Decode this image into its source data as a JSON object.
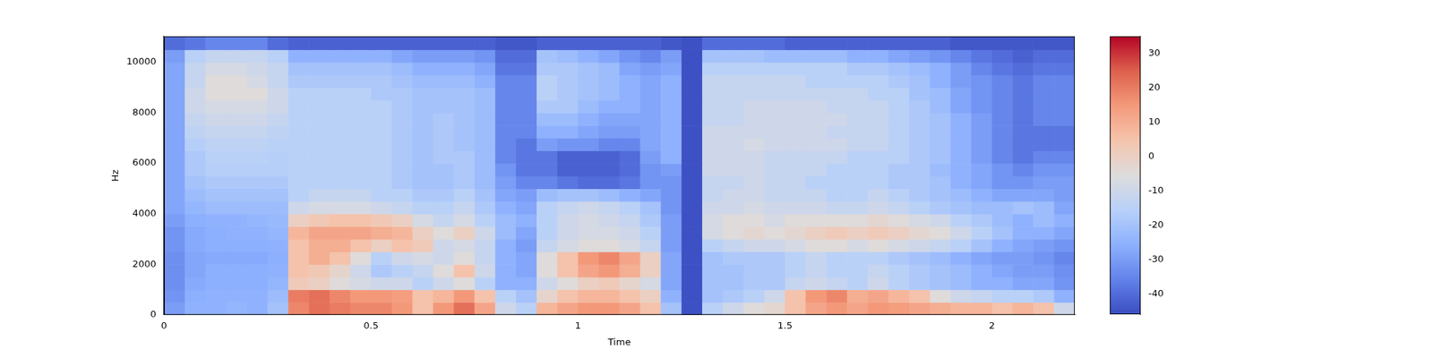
{
  "chart_data": {
    "type": "heatmap",
    "x_label": "Time",
    "y_label": "Hz",
    "xlim": [
      0,
      2.2
    ],
    "xticks": [
      0,
      0.5,
      1,
      1.5,
      2
    ],
    "ylim": [
      0,
      11025
    ],
    "yticks": [
      0,
      2000,
      4000,
      6000,
      8000,
      10000
    ],
    "grid": false,
    "colorbar_lim": [
      -46,
      35
    ],
    "colorbar_ticks": [
      -40,
      -30,
      -20,
      -10,
      0,
      10,
      20,
      30
    ],
    "x_bins": [
      0,
      0.05,
      0.1,
      0.15,
      0.2,
      0.25,
      0.3,
      0.35,
      0.4,
      0.45,
      0.5,
      0.55,
      0.6,
      0.65,
      0.7,
      0.75,
      0.8,
      0.85,
      0.9,
      0.95,
      1,
      1.05,
      1.1,
      1.15,
      1.2,
      1.25,
      1.3,
      1.35,
      1.4,
      1.45,
      1.5,
      1.55,
      1.6,
      1.65,
      1.7,
      1.75,
      1.8,
      1.85,
      1.9,
      1.95,
      2,
      2.05,
      2.1,
      2.15,
      2.2
    ],
    "y_bins": [
      0,
      500,
      1000,
      1500,
      2000,
      2500,
      3000,
      3500,
      4000,
      4500,
      5000,
      5500,
      6000,
      6500,
      7000,
      7500,
      8000,
      8500,
      9000,
      9500,
      10000,
      10500,
      11025
    ],
    "cells": [
      [
        -30,
        -25,
        -25,
        -24,
        -25,
        -20,
        18,
        22,
        20,
        18,
        18,
        15,
        5,
        15,
        22,
        12,
        -10,
        -15,
        8,
        12,
        15,
        15,
        12,
        5,
        -20,
        -45,
        -15,
        -10,
        -5,
        -3,
        5,
        12,
        15,
        12,
        15,
        14,
        12,
        10,
        8,
        8,
        5,
        8,
        5,
        -10
      ],
      [
        -32,
        -26,
        -25,
        -25,
        -25,
        -22,
        20,
        22,
        18,
        15,
        15,
        14,
        5,
        8,
        15,
        5,
        -15,
        -20,
        -2,
        5,
        8,
        8,
        5,
        0,
        -25,
        -45,
        -20,
        -18,
        -15,
        -10,
        5,
        15,
        18,
        10,
        12,
        8,
        5,
        -5,
        -10,
        -12,
        -15,
        -15,
        -18,
        -25
      ],
      [
        -33,
        -27,
        -26,
        -26,
        -26,
        -24,
        2,
        0,
        -5,
        -8,
        -10,
        -10,
        -15,
        -10,
        -5,
        -15,
        -25,
        -25,
        -10,
        -5,
        0,
        2,
        -2,
        -8,
        -28,
        -45,
        -20,
        -20,
        -18,
        -18,
        -12,
        -10,
        -12,
        -15,
        -10,
        -15,
        -18,
        -20,
        -22,
        -25,
        -25,
        -28,
        -28,
        -32
      ],
      [
        -33,
        -28,
        -26,
        -26,
        -26,
        -25,
        5,
        3,
        -2,
        -10,
        -18,
        -15,
        -12,
        -5,
        5,
        -10,
        -25,
        -28,
        -5,
        5,
        12,
        15,
        10,
        0,
        -28,
        -45,
        -20,
        -20,
        -18,
        -18,
        -15,
        -12,
        -15,
        -15,
        -12,
        -15,
        -18,
        -20,
        -22,
        -25,
        -28,
        -30,
        -30,
        -33
      ],
      [
        -33,
        -28,
        -27,
        -27,
        -27,
        -26,
        5,
        10,
        5,
        -5,
        -15,
        -10,
        -8,
        -10,
        -5,
        -12,
        -25,
        -28,
        -5,
        5,
        15,
        18,
        12,
        0,
        -28,
        -45,
        -20,
        -18,
        -18,
        -18,
        -15,
        -12,
        -15,
        -15,
        -15,
        -18,
        -20,
        -22,
        -25,
        -28,
        -30,
        -30,
        -32,
        -35
      ],
      [
        -32,
        -27,
        -26,
        -26,
        -26,
        -25,
        5,
        10,
        10,
        5,
        0,
        5,
        2,
        -10,
        -8,
        -12,
        -25,
        -30,
        -12,
        -8,
        -5,
        -5,
        -8,
        -12,
        -30,
        -45,
        -15,
        -12,
        -10,
        -10,
        -8,
        -5,
        -5,
        -8,
        -5,
        -8,
        -10,
        -12,
        -15,
        -20,
        -25,
        -28,
        -30,
        -32
      ],
      [
        -32,
        -27,
        -26,
        -25,
        -25,
        -24,
        8,
        12,
        12,
        12,
        10,
        8,
        0,
        -5,
        0,
        -10,
        -22,
        -28,
        -15,
        -10,
        -8,
        -8,
        -10,
        -15,
        -30,
        -45,
        -8,
        -5,
        -3,
        -5,
        -3,
        0,
        2,
        0,
        2,
        0,
        -3,
        -5,
        -10,
        -15,
        -20,
        -25,
        -25,
        -28
      ],
      [
        -30,
        -26,
        -25,
        -25,
        -24,
        -23,
        0,
        3,
        5,
        5,
        3,
        0,
        -8,
        -12,
        -8,
        -15,
        -22,
        -25,
        -15,
        -10,
        -8,
        -10,
        -12,
        -18,
        -30,
        -45,
        -8,
        -5,
        -5,
        -8,
        -5,
        -5,
        -5,
        -5,
        -3,
        -5,
        -8,
        -10,
        -15,
        -18,
        -22,
        -25,
        -22,
        -25
      ],
      [
        -28,
        -24,
        -22,
        -22,
        -22,
        -22,
        -10,
        -8,
        -8,
        -8,
        -10,
        -12,
        -15,
        -15,
        -12,
        -18,
        -25,
        -28,
        -15,
        -12,
        -10,
        -12,
        -15,
        -20,
        -32,
        -45,
        -10,
        -10,
        -8,
        -10,
        -10,
        -10,
        -12,
        -12,
        -10,
        -12,
        -15,
        -18,
        -20,
        -22,
        -22,
        -20,
        -22,
        -28
      ],
      [
        -28,
        -22,
        -20,
        -20,
        -20,
        -20,
        -15,
        -12,
        -12,
        -12,
        -15,
        -15,
        -18,
        -18,
        -15,
        -20,
        -28,
        -30,
        -22,
        -20,
        -20,
        -22,
        -25,
        -28,
        -32,
        -45,
        -12,
        -10,
        -10,
        -12,
        -12,
        -12,
        -15,
        -15,
        -12,
        -15,
        -18,
        -20,
        -22,
        -25,
        -28,
        -28,
        -28,
        -30
      ],
      [
        -28,
        -20,
        -18,
        -18,
        -18,
        -18,
        -15,
        -15,
        -15,
        -15,
        -15,
        -18,
        -20,
        -20,
        -18,
        -22,
        -30,
        -35,
        -35,
        -38,
        -40,
        -40,
        -38,
        -32,
        -32,
        -45,
        -12,
        -12,
        -10,
        -12,
        -12,
        -15,
        -15,
        -15,
        -15,
        -18,
        -18,
        -20,
        -25,
        -28,
        -32,
        -32,
        -30,
        -30
      ],
      [
        -28,
        -18,
        -16,
        -16,
        -16,
        -16,
        -15,
        -15,
        -15,
        -15,
        -15,
        -18,
        -20,
        -20,
        -18,
        -22,
        -32,
        -38,
        -38,
        -42,
        -42,
        -42,
        -40,
        -32,
        -30,
        -45,
        -10,
        -10,
        -10,
        -12,
        -12,
        -12,
        -15,
        -15,
        -15,
        -18,
        -18,
        -22,
        -25,
        -28,
        -32,
        -35,
        -32,
        -32
      ],
      [
        -28,
        -18,
        -15,
        -15,
        -15,
        -16,
        -15,
        -15,
        -15,
        -15,
        -15,
        -18,
        -20,
        -18,
        -18,
        -22,
        -35,
        -38,
        -38,
        -42,
        -42,
        -42,
        -40,
        -30,
        -25,
        -45,
        -10,
        -10,
        -10,
        -12,
        -12,
        -12,
        -12,
        -15,
        -15,
        -15,
        -18,
        -20,
        -25,
        -30,
        -35,
        -38,
        -35,
        -35
      ],
      [
        -28,
        -16,
        -14,
        -14,
        -14,
        -15,
        -15,
        -15,
        -15,
        -15,
        -15,
        -18,
        -20,
        -18,
        -20,
        -22,
        -35,
        -38,
        -30,
        -32,
        -32,
        -35,
        -35,
        -28,
        -25,
        -45,
        -10,
        -10,
        -8,
        -10,
        -10,
        -10,
        -10,
        -12,
        -12,
        -15,
        -18,
        -20,
        -25,
        -30,
        -35,
        -38,
        -38,
        -38
      ],
      [
        -28,
        -14,
        -12,
        -12,
        -12,
        -14,
        -15,
        -15,
        -15,
        -15,
        -15,
        -18,
        -20,
        -18,
        -20,
        -22,
        -35,
        -35,
        -25,
        -25,
        -28,
        -30,
        -30,
        -28,
        -25,
        -45,
        -10,
        -10,
        -10,
        -10,
        -10,
        -10,
        -12,
        -12,
        -12,
        -15,
        -18,
        -20,
        -25,
        -30,
        -35,
        -38,
        -38,
        -38
      ],
      [
        -28,
        -12,
        -10,
        -10,
        -10,
        -12,
        -15,
        -15,
        -15,
        -15,
        -15,
        -18,
        -20,
        -18,
        -20,
        -22,
        -35,
        -35,
        -22,
        -22,
        -25,
        -28,
        -28,
        -28,
        -25,
        -45,
        -12,
        -12,
        -10,
        -10,
        -10,
        -10,
        -10,
        -12,
        -12,
        -15,
        -18,
        -20,
        -25,
        -30,
        -35,
        -38,
        -35,
        -35
      ],
      [
        -28,
        -10,
        -8,
        -8,
        -8,
        -10,
        -15,
        -15,
        -15,
        -15,
        -15,
        -18,
        -20,
        -20,
        -20,
        -22,
        -35,
        -35,
        -18,
        -18,
        -22,
        -25,
        -25,
        -28,
        -25,
        -45,
        -12,
        -12,
        -10,
        -10,
        -10,
        -10,
        -12,
        -12,
        -12,
        -15,
        -18,
        -22,
        -28,
        -32,
        -35,
        -38,
        -35,
        -35
      ],
      [
        -28,
        -10,
        -5,
        -5,
        -5,
        -10,
        -15,
        -15,
        -15,
        -15,
        -18,
        -18,
        -20,
        -20,
        -20,
        -22,
        -35,
        -35,
        -15,
        -18,
        -20,
        -22,
        -25,
        -28,
        -25,
        -45,
        -12,
        -12,
        -12,
        -12,
        -12,
        -12,
        -12,
        -12,
        -15,
        -15,
        -20,
        -22,
        -28,
        -32,
        -35,
        -38,
        -35,
        -35
      ],
      [
        -28,
        -12,
        -5,
        -5,
        -8,
        -12,
        -18,
        -18,
        -18,
        -18,
        -18,
        -20,
        -22,
        -22,
        -22,
        -25,
        -35,
        -35,
        -15,
        -18,
        -20,
        -22,
        -25,
        -28,
        -25,
        -45,
        -12,
        -12,
        -12,
        -12,
        -12,
        -15,
        -15,
        -15,
        -15,
        -18,
        -20,
        -25,
        -30,
        -32,
        -35,
        -38,
        -35,
        -35
      ],
      [
        -28,
        -12,
        -8,
        -8,
        -10,
        -12,
        -20,
        -20,
        -20,
        -20,
        -20,
        -22,
        -25,
        -25,
        -25,
        -28,
        -38,
        -38,
        -18,
        -18,
        -20,
        -22,
        -28,
        -30,
        -28,
        -45,
        -15,
        -15,
        -15,
        -15,
        -15,
        -15,
        -15,
        -18,
        -18,
        -20,
        -22,
        -25,
        -30,
        -35,
        -38,
        -40,
        -38,
        -38
      ],
      [
        -30,
        -15,
        -12,
        -12,
        -12,
        -15,
        -25,
        -25,
        -25,
        -25,
        -25,
        -28,
        -30,
        -30,
        -30,
        -32,
        -40,
        -40,
        -20,
        -22,
        -25,
        -28,
        -32,
        -35,
        -30,
        -45,
        -20,
        -20,
        -20,
        -22,
        -22,
        -22,
        -22,
        -25,
        -25,
        -28,
        -30,
        -32,
        -35,
        -38,
        -40,
        -42,
        -40,
        -40
      ],
      [
        -40,
        -38,
        -35,
        -35,
        -35,
        -40,
        -42,
        -42,
        -42,
        -42,
        -42,
        -42,
        -42,
        -42,
        -42,
        -42,
        -44,
        -44,
        -42,
        -42,
        -42,
        -42,
        -42,
        -42,
        -44,
        -45,
        -40,
        -40,
        -40,
        -40,
        -42,
        -42,
        -42,
        -42,
        -42,
        -42,
        -42,
        -42,
        -44,
        -44,
        -44,
        -44,
        -44,
        -44
      ]
    ]
  }
}
